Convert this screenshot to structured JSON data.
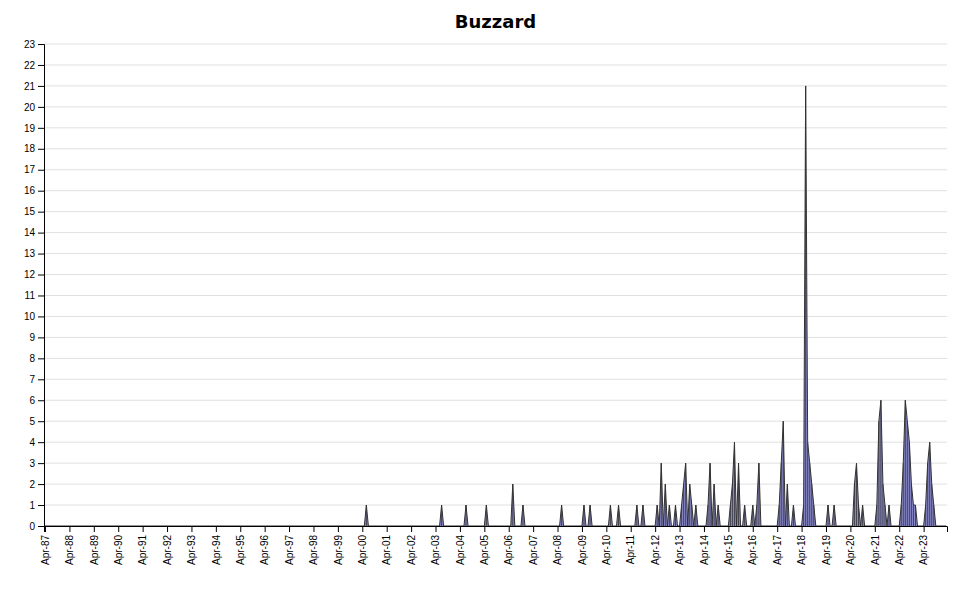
{
  "chart_data": {
    "type": "area",
    "title": "Buzzard",
    "categories": [
      "Apr-87",
      null,
      null,
      null,
      null,
      null,
      null,
      null,
      null,
      null,
      null,
      null,
      "Apr-88",
      null,
      null,
      null,
      null,
      null,
      null,
      null,
      null,
      null,
      null,
      null,
      "Apr-89",
      null,
      null,
      null,
      null,
      null,
      null,
      null,
      null,
      null,
      null,
      null,
      "Apr-90",
      null,
      null,
      null,
      null,
      null,
      null,
      null,
      null,
      null,
      null,
      null,
      "Apr-91",
      null,
      null,
      null,
      null,
      null,
      null,
      null,
      null,
      null,
      null,
      null,
      "Apr-92",
      null,
      null,
      null,
      null,
      null,
      null,
      null,
      null,
      null,
      null,
      null,
      "Apr-93",
      null,
      null,
      null,
      null,
      null,
      null,
      null,
      null,
      null,
      null,
      null,
      "Apr-94",
      null,
      null,
      null,
      null,
      null,
      null,
      null,
      null,
      null,
      null,
      null,
      "Apr-95",
      null,
      null,
      null,
      null,
      null,
      null,
      null,
      null,
      null,
      null,
      null,
      "Apr-96",
      null,
      null,
      null,
      null,
      null,
      null,
      null,
      null,
      null,
      null,
      null,
      "Apr-97",
      null,
      null,
      null,
      null,
      null,
      null,
      null,
      null,
      null,
      null,
      null,
      "Apr-98",
      null,
      null,
      null,
      null,
      null,
      null,
      null,
      null,
      null,
      null,
      null,
      "Apr-99",
      null,
      null,
      null,
      null,
      null,
      null,
      null,
      null,
      null,
      null,
      null,
      "Apr-00",
      null,
      null,
      null,
      null,
      null,
      null,
      null,
      null,
      null,
      null,
      null,
      "Apr-01",
      null,
      null,
      null,
      null,
      null,
      null,
      null,
      null,
      null,
      null,
      null,
      "Apr-02",
      null,
      null,
      null,
      null,
      null,
      null,
      null,
      null,
      null,
      null,
      null,
      "Apr-03",
      null,
      null,
      null,
      null,
      null,
      null,
      null,
      null,
      null,
      null,
      null,
      "Apr-04",
      null,
      null,
      null,
      null,
      null,
      null,
      null,
      null,
      null,
      null,
      null,
      "Apr-05",
      null,
      null,
      null,
      null,
      null,
      null,
      null,
      null,
      null,
      null,
      null,
      "Apr-06",
      null,
      null,
      null,
      null,
      null,
      null,
      null,
      null,
      null,
      null,
      null,
      "Apr-07",
      null,
      null,
      null,
      null,
      null,
      null,
      null,
      null,
      null,
      null,
      null,
      "Apr-08",
      null,
      null,
      null,
      null,
      null,
      null,
      null,
      null,
      null,
      null,
      null,
      "Apr-09",
      null,
      null,
      null,
      null,
      null,
      null,
      null,
      null,
      null,
      null,
      null,
      "Apr-10",
      null,
      null,
      null,
      null,
      null,
      null,
      null,
      null,
      null,
      null,
      null,
      "Apr-11",
      null,
      null,
      null,
      null,
      null,
      null,
      null,
      null,
      null,
      null,
      null,
      "Apr-12",
      null,
      null,
      null,
      null,
      null,
      null,
      null,
      null,
      null,
      null,
      null,
      "Apr-13",
      null,
      null,
      null,
      null,
      null,
      null,
      null,
      null,
      null,
      null,
      null,
      "Apr-14",
      null,
      null,
      null,
      null,
      null,
      null,
      null,
      null,
      null,
      null,
      null,
      "Apr-15",
      null,
      null,
      null,
      null,
      null,
      null,
      null,
      null,
      null,
      null,
      null,
      "Apr-16",
      null,
      null,
      null,
      null,
      null,
      null,
      null,
      null,
      null,
      null,
      null,
      "Apr-17",
      null,
      null,
      null,
      null,
      null,
      null,
      null,
      null,
      null,
      null,
      null,
      "Apr-18",
      null,
      null,
      null,
      null,
      null,
      null,
      null,
      null,
      null,
      null,
      null,
      "Apr-19",
      null,
      null,
      null,
      null,
      null,
      null,
      null,
      null,
      null,
      null,
      null,
      "Apr-20",
      null,
      null,
      null,
      null,
      null,
      null,
      null,
      null,
      null,
      null,
      null,
      "Apr-21",
      null,
      null,
      null,
      null,
      null,
      null,
      null,
      null,
      null,
      null,
      null,
      "Apr-22",
      null,
      null,
      null,
      null,
      null,
      null,
      null,
      null,
      null,
      null,
      null,
      "Apr-23",
      null,
      null,
      null,
      null,
      null,
      null,
      null,
      null,
      null,
      null,
      null
    ],
    "values": [
      0,
      0,
      0,
      0,
      0,
      0,
      0,
      0,
      0,
      0,
      0,
      0,
      0,
      0,
      0,
      0,
      0,
      0,
      0,
      0,
      0,
      0,
      0,
      0,
      0,
      0,
      0,
      0,
      0,
      0,
      0,
      0,
      0,
      0,
      0,
      0,
      0,
      0,
      0,
      0,
      0,
      0,
      0,
      0,
      0,
      0,
      0,
      0,
      0,
      0,
      0,
      0,
      0,
      0,
      0,
      0,
      0,
      0,
      0,
      0,
      0,
      0,
      0,
      0,
      0,
      0,
      0,
      0,
      0,
      0,
      0,
      0,
      0,
      0,
      0,
      0,
      0,
      0,
      0,
      0,
      0,
      0,
      0,
      0,
      0,
      0,
      0,
      0,
      0,
      0,
      0,
      0,
      0,
      0,
      0,
      0,
      0,
      0,
      0,
      0,
      0,
      0,
      0,
      0,
      0,
      0,
      0,
      0,
      0,
      0,
      0,
      0,
      0,
      0,
      0,
      0,
      0,
      0,
      0,
      0,
      0,
      0,
      0,
      0,
      0,
      0,
      0,
      0,
      0,
      0,
      0,
      0,
      0,
      0,
      0,
      0,
      0,
      0,
      0,
      0,
      0,
      0,
      0,
      0,
      0,
      0,
      0,
      0,
      0,
      0,
      0,
      0,
      0,
      0,
      0,
      0,
      0,
      0,
      1,
      0,
      0,
      0,
      0,
      0,
      0,
      0,
      0,
      0,
      0,
      0,
      0,
      0,
      0,
      0,
      0,
      0,
      0,
      0,
      0,
      0,
      0,
      0,
      0,
      0,
      0,
      0,
      0,
      0,
      0,
      0,
      0,
      0,
      0,
      0,
      0,
      1,
      0,
      0,
      0,
      0,
      0,
      0,
      0,
      0,
      0,
      0,
      0,
      1,
      0,
      0,
      0,
      0,
      0,
      0,
      0,
      0,
      0,
      1,
      0,
      0,
      0,
      0,
      0,
      0,
      0,
      0,
      0,
      0,
      0,
      0,
      2,
      0,
      0,
      0,
      0,
      1,
      0,
      0,
      0,
      0,
      0,
      0,
      0,
      0,
      0,
      0,
      0,
      0,
      0,
      0,
      0,
      0,
      0,
      0,
      1,
      0,
      0,
      0,
      0,
      0,
      0,
      0,
      0,
      0,
      0,
      1,
      0,
      0,
      1,
      0,
      0,
      0,
      0,
      0,
      0,
      0,
      0,
      0,
      1,
      0,
      0,
      0,
      1,
      0,
      0,
      0,
      0,
      0,
      0,
      0,
      0,
      1,
      0,
      0,
      1,
      0,
      0,
      0,
      0,
      0,
      0,
      1,
      0,
      3,
      0,
      2,
      0,
      1,
      0,
      0,
      1,
      0,
      0,
      1,
      2,
      3,
      0,
      2,
      1,
      0,
      1,
      0,
      0,
      0,
      0,
      0,
      1,
      3,
      0,
      2,
      0,
      1,
      0,
      0,
      0,
      0,
      0,
      1,
      2,
      4,
      0,
      3,
      0,
      0,
      1,
      0,
      0,
      0,
      1,
      0,
      1,
      3,
      0,
      0,
      0,
      0,
      0,
      0,
      0,
      0,
      0,
      1,
      3,
      5,
      0,
      2,
      0,
      0,
      1,
      0,
      0,
      0,
      0,
      1,
      21,
      4,
      3,
      2,
      1,
      0,
      0,
      0,
      0,
      0,
      0,
      1,
      0,
      0,
      1,
      0,
      0,
      0,
      0,
      0,
      0,
      0,
      0,
      0,
      2,
      3,
      1,
      0,
      1,
      0,
      0,
      0,
      0,
      0,
      0,
      1,
      5,
      6,
      2,
      1,
      0,
      1,
      0,
      0,
      0,
      0,
      0,
      1,
      3,
      6,
      5,
      4,
      2,
      1,
      1,
      0,
      0,
      0,
      0,
      1,
      3,
      4,
      2,
      1,
      0,
      0,
      0,
      0,
      0,
      0
    ],
    "color": "#8888cc",
    "ylim": [
      0,
      23
    ],
    "yticks": [
      0,
      1,
      2,
      3,
      4,
      5,
      6,
      7,
      8,
      9,
      10,
      11,
      12,
      13,
      14,
      15,
      16,
      17,
      18,
      19,
      20,
      21,
      22,
      23
    ],
    "grid": true
  }
}
